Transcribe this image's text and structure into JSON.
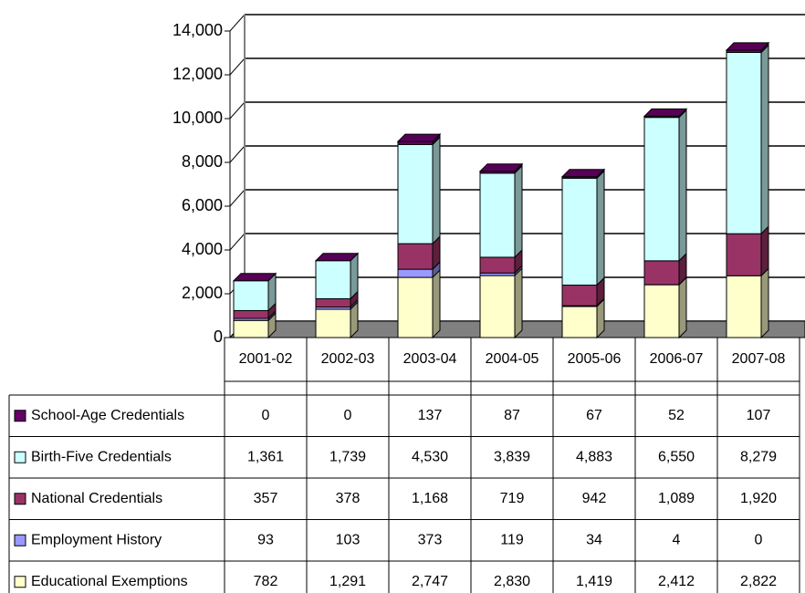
{
  "chart_data": {
    "type": "bar",
    "stacked": true,
    "categories": [
      "2001-02",
      "2002-03",
      "2003-04",
      "2004-05",
      "2005-06",
      "2006-07",
      "2007-08"
    ],
    "series": [
      {
        "name": "Educational Exemptions",
        "color": "#ffffcc",
        "values": [
          782,
          1291,
          2747,
          2830,
          1419,
          2412,
          2822
        ],
        "value_labels": [
          "782",
          "1,291",
          "2,747",
          "2,830",
          "1,419",
          "2,412",
          "2,822"
        ]
      },
      {
        "name": "Employment History",
        "color": "#9999ff",
        "values": [
          93,
          103,
          373,
          119,
          34,
          4,
          0
        ],
        "value_labels": [
          "93",
          "103",
          "373",
          "119",
          "34",
          "4",
          "0"
        ]
      },
      {
        "name": "National Credentials",
        "color": "#993366",
        "values": [
          357,
          378,
          1168,
          719,
          942,
          1089,
          1920
        ],
        "value_labels": [
          "357",
          "378",
          "1,168",
          "719",
          "942",
          "1,089",
          "1,920"
        ]
      },
      {
        "name": "Birth-Five Credentials",
        "color": "#ccffff",
        "values": [
          1361,
          1739,
          4530,
          3839,
          4883,
          6550,
          8279
        ],
        "value_labels": [
          "1,361",
          "1,739",
          "4,530",
          "3,839",
          "4,883",
          "6,550",
          "8,279"
        ]
      },
      {
        "name": "School-Age Credentials",
        "color": "#660066",
        "values": [
          0,
          0,
          137,
          87,
          67,
          52,
          107
        ],
        "value_labels": [
          "0",
          "0",
          "137",
          "87",
          "67",
          "52",
          "107"
        ]
      }
    ],
    "ylim": [
      0,
      14000
    ],
    "yticks": [
      0,
      {
        "value": 2000,
        "label": "2,000"
      },
      {
        "value": 4000,
        "label": "4,000"
      },
      {
        "value": 6000,
        "label": "6,000"
      },
      {
        "value": 8000,
        "label": "8,000"
      },
      {
        "value": 10000,
        "label": "10,000"
      },
      {
        "value": 12000,
        "label": "12,000"
      },
      {
        "value": 14000,
        "label": "14,000"
      }
    ],
    "grid": true
  }
}
